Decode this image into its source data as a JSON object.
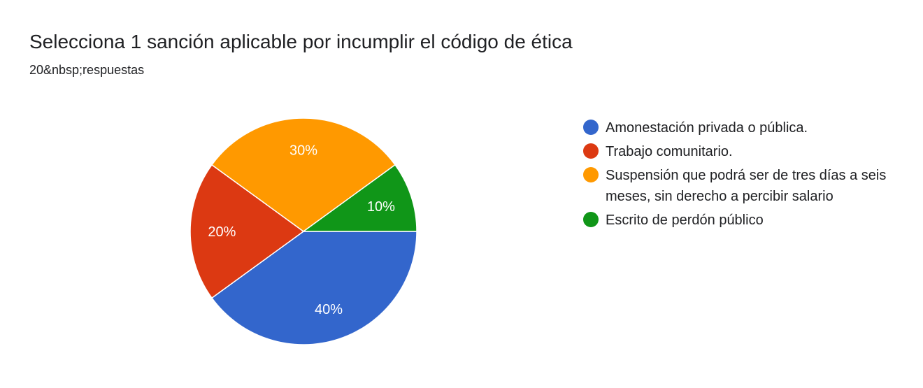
{
  "page": {
    "title": "Selecciona 1 sanción aplicable por incumplir el código de ética",
    "subtitle": "20&nbsp;respuestas"
  },
  "chart_data": {
    "type": "pie",
    "title": "Selecciona 1 sanción aplicable por incumplir el código de ética",
    "subtitle": "20&nbsp;respuestas",
    "start_angle_deg": 90,
    "direction": "clockwise",
    "legend_position": "right",
    "slices": [
      {
        "label": "Amonestación privada o pública.",
        "value": 40,
        "display": "40%",
        "color": "#3366cc"
      },
      {
        "label": "Trabajo comunitario.",
        "value": 20,
        "display": "20%",
        "color": "#dc3912"
      },
      {
        "label": "Suspensión que podrá ser de tres días a seis meses, sin derecho a percibir salario",
        "value": 30,
        "display": "30%",
        "color": "#ff9900"
      },
      {
        "label": "Escrito de perdón público",
        "value": 10,
        "display": "10%",
        "color": "#109618"
      }
    ]
  }
}
